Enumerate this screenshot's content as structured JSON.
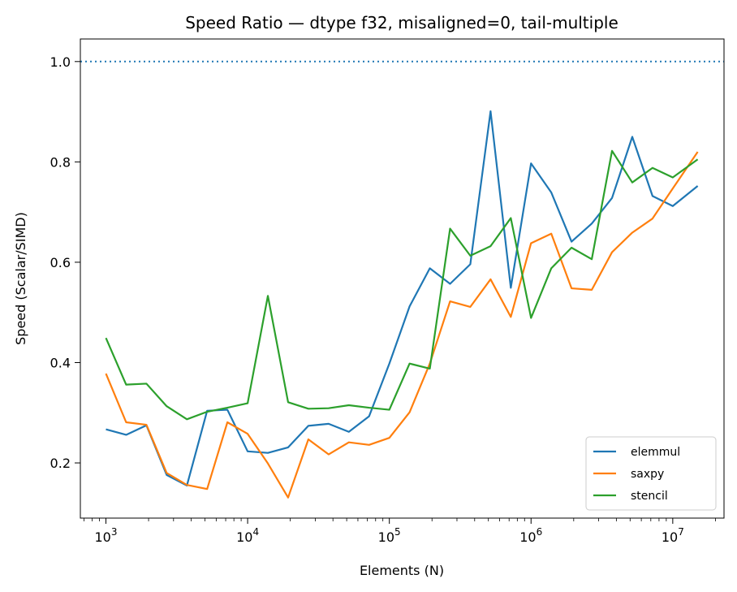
{
  "chart_data": {
    "type": "line",
    "title": "Speed Ratio — dtype f32, misaligned=0, tail-multiple",
    "xlabel": "Elements (N)",
    "ylabel": "Speed (Scalar/SIMD)",
    "xscale": "log",
    "xlim": [
      660,
      23000000
    ],
    "ylim": [
      0.09,
      1.045
    ],
    "xticks": [
      {
        "value": 1000,
        "base": "10",
        "exp": "3"
      },
      {
        "value": 10000,
        "base": "10",
        "exp": "4"
      },
      {
        "value": 100000,
        "base": "10",
        "exp": "5"
      },
      {
        "value": 1000000,
        "base": "10",
        "exp": "6"
      },
      {
        "value": 10000000,
        "base": "10",
        "exp": "7"
      }
    ],
    "yticks": [
      {
        "value": 0.2,
        "label": "0.2"
      },
      {
        "value": 0.4,
        "label": "0.4"
      },
      {
        "value": 0.6,
        "label": "0.6"
      },
      {
        "value": 0.8,
        "label": "0.8"
      },
      {
        "value": 1.0,
        "label": "1.0"
      }
    ],
    "reference_line": {
      "y": 1.0,
      "color": "#1f77b4",
      "style": "dotted"
    },
    "x": [
      1000,
      1389,
      1931,
      2683,
      3728,
      5179,
      7197,
      10000,
      13895,
      19307,
      26827,
      37276,
      51795,
      71969,
      100000,
      138950,
      193070,
      268270,
      372760,
      517950,
      719690,
      1000000,
      1389500,
      1930700,
      2682700,
      3727600,
      5179500,
      7196900,
      10000000,
      15000000
    ],
    "series": [
      {
        "name": "elemmul",
        "color": "#1f77b4",
        "values": [
          0.267,
          0.256,
          0.275,
          0.176,
          0.155,
          0.304,
          0.306,
          0.223,
          0.22,
          0.231,
          0.274,
          0.278,
          0.262,
          0.293,
          0.398,
          0.512,
          0.588,
          0.557,
          0.596,
          0.901,
          0.549,
          0.797,
          0.739,
          0.641,
          0.677,
          0.728,
          0.85,
          0.732,
          0.712,
          0.752
        ]
      },
      {
        "name": "saxpy",
        "color": "#ff7f0e",
        "values": [
          0.378,
          0.281,
          0.276,
          0.18,
          0.156,
          0.148,
          0.281,
          0.258,
          0.199,
          0.131,
          0.247,
          0.217,
          0.241,
          0.236,
          0.25,
          0.301,
          0.398,
          0.522,
          0.511,
          0.566,
          0.491,
          0.638,
          0.657,
          0.548,
          0.545,
          0.62,
          0.659,
          0.687,
          0.747,
          0.82
        ]
      },
      {
        "name": "stencil",
        "color": "#2ca02c",
        "values": [
          0.449,
          0.356,
          0.358,
          0.313,
          0.287,
          0.302,
          0.31,
          0.319,
          0.533,
          0.321,
          0.308,
          0.309,
          0.315,
          0.31,
          0.306,
          0.398,
          0.388,
          0.667,
          0.613,
          0.632,
          0.688,
          0.489,
          0.588,
          0.629,
          0.606,
          0.822,
          0.759,
          0.788,
          0.769,
          0.805
        ]
      }
    ],
    "legend": "bottom-right",
    "grid": false
  }
}
